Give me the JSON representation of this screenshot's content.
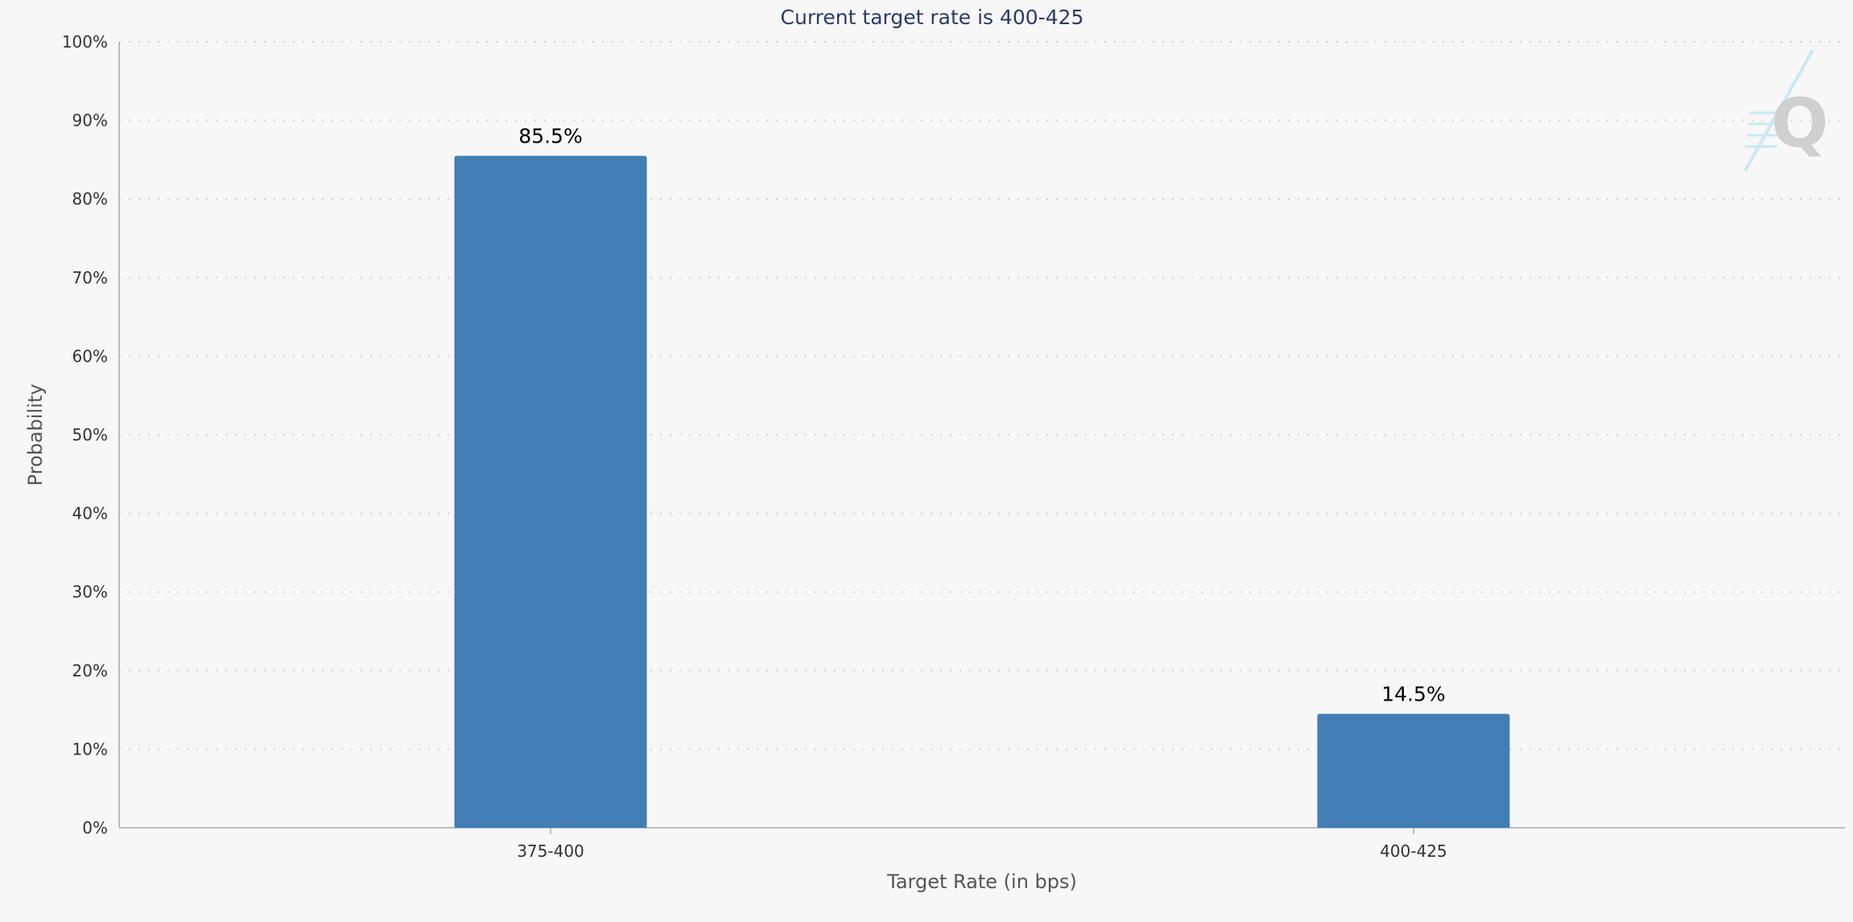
{
  "chart_data": {
    "type": "bar",
    "title": "Current target rate is 400-425",
    "xlabel": "Target Rate (in bps)",
    "ylabel": "Probability",
    "categories": [
      "375-400",
      "400-425"
    ],
    "values": [
      85.5,
      14.5
    ],
    "data_labels": [
      "85.5%",
      "14.5%"
    ],
    "ylim": [
      0,
      100
    ],
    "yticks": [
      0,
      10,
      20,
      30,
      40,
      50,
      60,
      70,
      80,
      90,
      100
    ],
    "ytick_suffix": "%",
    "grid": true,
    "legend": "none",
    "bar_color": "#427db5",
    "grid_color": "#d0d0d0",
    "title_color": "#2b3a67"
  },
  "watermark": {
    "letter": "Q",
    "icon": "quikstrike-logo-icon"
  }
}
